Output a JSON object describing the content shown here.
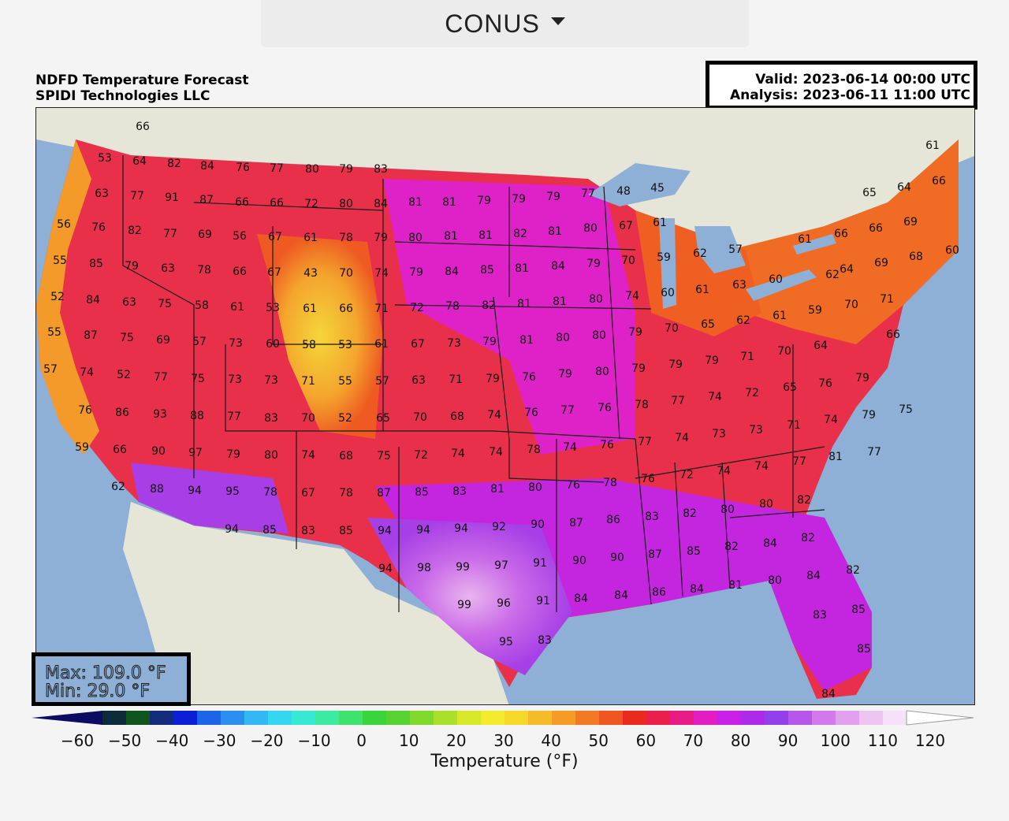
{
  "header": {
    "region_select": "CONUS"
  },
  "map": {
    "title": "NDFD Temperature Forecast",
    "provider": "SPIDI Technologies LLC",
    "valid": "Valid: 2023-06-14 00:00 UTC",
    "analysis": "Analysis: 2023-06-11 11:00 UTC",
    "max": "Max: 109.0 °F",
    "min": "Min: 29.0 °F"
  },
  "colorbar": {
    "label": "Temperature (°F)",
    "ticks": [
      "−60",
      "−50",
      "−40",
      "−30",
      "−20",
      "−10",
      "0",
      "10",
      "20",
      "30",
      "40",
      "50",
      "60",
      "70",
      "80",
      "90",
      "100",
      "110",
      "120"
    ],
    "colors": [
      "#0b0b63",
      "#0c2a3a",
      "#11551e",
      "#102c7a",
      "#0a1fd6",
      "#1e64e8",
      "#2c8ff0",
      "#33b8f3",
      "#35d7f0",
      "#37e8d2",
      "#3ceaa0",
      "#3fe26c",
      "#3ad53c",
      "#58d232",
      "#7fd92c",
      "#a9e02a",
      "#d7e82a",
      "#f2ec2c",
      "#f5d82a",
      "#f6bb28",
      "#f59c27",
      "#f27a24",
      "#ee5520",
      "#ea2a1e",
      "#ea1f4c",
      "#e81b84",
      "#e11dc3",
      "#c91fe6",
      "#ad2ae8",
      "#9240e9",
      "#b757ea",
      "#d27aec",
      "#e2a1ef",
      "#eec4f3",
      "#f6e2f8",
      "#ffffff"
    ]
  },
  "values": [
    [
      "66",
      180,
      159
    ],
    [
      "53",
      132,
      199
    ],
    [
      "64",
      176,
      203
    ],
    [
      "82",
      220,
      206
    ],
    [
      "84",
      262,
      209
    ],
    [
      "76",
      307,
      211
    ],
    [
      "77",
      350,
      212
    ],
    [
      "80",
      395,
      213
    ],
    [
      "79",
      438,
      213
    ],
    [
      "83",
      482,
      213
    ],
    [
      "63",
      128,
      244
    ],
    [
      "77",
      173,
      247
    ],
    [
      "91",
      217,
      249
    ],
    [
      "87",
      261,
      252
    ],
    [
      "66",
      306,
      255
    ],
    [
      "66",
      350,
      256
    ],
    [
      "72",
      394,
      257
    ],
    [
      "80",
      438,
      257
    ],
    [
      "84",
      482,
      257
    ],
    [
      "81",
      526,
      255
    ],
    [
      "81",
      569,
      255
    ],
    [
      "79",
      613,
      253
    ],
    [
      "79",
      657,
      251
    ],
    [
      "79",
      701,
      248
    ],
    [
      "77",
      745,
      244
    ],
    [
      "48",
      790,
      241
    ],
    [
      "45",
      833,
      237
    ],
    [
      "65",
      1102,
      243
    ],
    [
      "64",
      1146,
      236
    ],
    [
      "66",
      1190,
      228
    ],
    [
      "61",
      1182,
      183
    ],
    [
      "56",
      80,
      283
    ],
    [
      "76",
      124,
      287
    ],
    [
      "82",
      170,
      291
    ],
    [
      "77",
      215,
      295
    ],
    [
      "69",
      259,
      296
    ],
    [
      "56",
      303,
      298
    ],
    [
      "67",
      348,
      299
    ],
    [
      "61",
      393,
      300
    ],
    [
      "78",
      438,
      300
    ],
    [
      "79",
      482,
      300
    ],
    [
      "80",
      526,
      300
    ],
    [
      "81",
      571,
      298
    ],
    [
      "81",
      615,
      297
    ],
    [
      "82",
      659,
      295
    ],
    [
      "81",
      703,
      292
    ],
    [
      "80",
      748,
      288
    ],
    [
      "67",
      793,
      285
    ],
    [
      "61",
      836,
      281
    ],
    [
      "66",
      1066,
      295
    ],
    [
      "66",
      1110,
      288
    ],
    [
      "69",
      1154,
      280
    ],
    [
      "55",
      75,
      329
    ],
    [
      "85",
      121,
      333
    ],
    [
      "79",
      166,
      336
    ],
    [
      "63",
      212,
      339
    ],
    [
      "78",
      258,
      341
    ],
    [
      "66",
      303,
      343
    ],
    [
      "67",
      347,
      344
    ],
    [
      "43",
      393,
      345
    ],
    [
      "70",
      438,
      345
    ],
    [
      "74",
      483,
      345
    ],
    [
      "79",
      527,
      344
    ],
    [
      "84",
      572,
      343
    ],
    [
      "85",
      617,
      341
    ],
    [
      "81",
      661,
      339
    ],
    [
      "84",
      707,
      336
    ],
    [
      "79",
      752,
      333
    ],
    [
      "70",
      796,
      329
    ],
    [
      "59",
      841,
      325
    ],
    [
      "62",
      887,
      320
    ],
    [
      "57",
      932,
      315
    ],
    [
      "61",
      1020,
      302
    ],
    [
      "62",
      1055,
      347
    ],
    [
      "64",
      1073,
      340
    ],
    [
      "69",
      1117,
      332
    ],
    [
      "68",
      1161,
      324
    ],
    [
      "60",
      1207,
      316
    ],
    [
      "52",
      72,
      375
    ],
    [
      "84",
      117,
      379
    ],
    [
      "63",
      163,
      382
    ],
    [
      "75",
      208,
      384
    ],
    [
      "58",
      255,
      386
    ],
    [
      "61",
      300,
      388
    ],
    [
      "53",
      345,
      389
    ],
    [
      "61",
      392,
      390
    ],
    [
      "66",
      438,
      390
    ],
    [
      "71",
      483,
      390
    ],
    [
      "72",
      528,
      389
    ],
    [
      "78",
      573,
      387
    ],
    [
      "82",
      619,
      386
    ],
    [
      "81",
      664,
      384
    ],
    [
      "81",
      709,
      381
    ],
    [
      "80",
      755,
      378
    ],
    [
      "74",
      801,
      374
    ],
    [
      "60",
      846,
      370
    ],
    [
      "61",
      890,
      366
    ],
    [
      "63",
      937,
      360
    ],
    [
      "60",
      983,
      353
    ],
    [
      "59",
      1033,
      392
    ],
    [
      "70",
      1079,
      385
    ],
    [
      "71",
      1124,
      378
    ],
    [
      "61",
      988,
      399
    ],
    [
      "55",
      68,
      420
    ],
    [
      "87",
      114,
      424
    ],
    [
      "75",
      160,
      427
    ],
    [
      "69",
      206,
      430
    ],
    [
      "57",
      252,
      432
    ],
    [
      "73",
      298,
      434
    ],
    [
      "60",
      345,
      435
    ],
    [
      "58",
      391,
      436
    ],
    [
      "53",
      437,
      436
    ],
    [
      "61",
      483,
      435
    ],
    [
      "67",
      529,
      435
    ],
    [
      "73",
      575,
      434
    ],
    [
      "79",
      620,
      432
    ],
    [
      "81",
      667,
      430
    ],
    [
      "80",
      713,
      427
    ],
    [
      "80",
      759,
      424
    ],
    [
      "79",
      805,
      420
    ],
    [
      "70",
      851,
      415
    ],
    [
      "65",
      897,
      410
    ],
    [
      "62",
      942,
      405
    ],
    [
      "64",
      1040,
      437
    ],
    [
      "66",
      1132,
      423
    ],
    [
      "57",
      63,
      467
    ],
    [
      "74",
      109,
      471
    ],
    [
      "52",
      156,
      474
    ],
    [
      "77",
      203,
      477
    ],
    [
      "75",
      250,
      479
    ],
    [
      "73",
      297,
      480
    ],
    [
      "73",
      343,
      481
    ],
    [
      "71",
      390,
      482
    ],
    [
      "55",
      437,
      482
    ],
    [
      "57",
      484,
      482
    ],
    [
      "63",
      530,
      481
    ],
    [
      "71",
      577,
      480
    ],
    [
      "79",
      624,
      479
    ],
    [
      "76",
      670,
      477
    ],
    [
      "79",
      716,
      473
    ],
    [
      "80",
      763,
      470
    ],
    [
      "79",
      809,
      466
    ],
    [
      "79",
      856,
      461
    ],
    [
      "79",
      902,
      456
    ],
    [
      "71",
      947,
      451
    ],
    [
      "70",
      994,
      444
    ],
    [
      "65",
      1001,
      490
    ],
    [
      "76",
      1046,
      485
    ],
    [
      "79",
      1093,
      478
    ],
    [
      "76",
      107,
      519
    ],
    [
      "86",
      154,
      522
    ],
    [
      "93",
      202,
      524
    ],
    [
      "88",
      249,
      526
    ],
    [
      "77",
      296,
      527
    ],
    [
      "83",
      343,
      529
    ],
    [
      "70",
      390,
      529
    ],
    [
      "52",
      437,
      529
    ],
    [
      "65",
      485,
      529
    ],
    [
      "70",
      532,
      528
    ],
    [
      "68",
      579,
      527
    ],
    [
      "74",
      626,
      525
    ],
    [
      "76",
      673,
      522
    ],
    [
      "77",
      719,
      519
    ],
    [
      "76",
      766,
      516
    ],
    [
      "78",
      813,
      512
    ],
    [
      "77",
      859,
      507
    ],
    [
      "74",
      906,
      502
    ],
    [
      "72",
      953,
      497
    ],
    [
      "71",
      1006,
      538
    ],
    [
      "74",
      1053,
      531
    ],
    [
      "79",
      1101,
      525
    ],
    [
      "75",
      1148,
      518
    ],
    [
      "59",
      103,
      566
    ],
    [
      "66",
      151,
      569
    ],
    [
      "90",
      200,
      571
    ],
    [
      "97",
      247,
      573
    ],
    [
      "79",
      295,
      575
    ],
    [
      "80",
      343,
      576
    ],
    [
      "74",
      390,
      576
    ],
    [
      "68",
      438,
      577
    ],
    [
      "75",
      486,
      577
    ],
    [
      "72",
      533,
      576
    ],
    [
      "74",
      580,
      574
    ],
    [
      "74",
      628,
      572
    ],
    [
      "78",
      676,
      569
    ],
    [
      "74",
      722,
      566
    ],
    [
      "76",
      769,
      563
    ],
    [
      "77",
      817,
      559
    ],
    [
      "74",
      864,
      554
    ],
    [
      "73",
      911,
      549
    ],
    [
      "73",
      958,
      544
    ],
    [
      "77",
      1013,
      584
    ],
    [
      "81",
      1059,
      578
    ],
    [
      "77",
      1108,
      572
    ],
    [
      "62",
      149,
      616
    ],
    [
      "88",
      198,
      619
    ],
    [
      "94",
      246,
      621
    ],
    [
      "95",
      294,
      622
    ],
    [
      "78",
      342,
      623
    ],
    [
      "67",
      390,
      624
    ],
    [
      "78",
      438,
      624
    ],
    [
      "87",
      486,
      624
    ],
    [
      "85",
      534,
      623
    ],
    [
      "83",
      582,
      622
    ],
    [
      "81",
      630,
      619
    ],
    [
      "80",
      678,
      617
    ],
    [
      "76",
      726,
      614
    ],
    [
      "78",
      773,
      611
    ],
    [
      "76",
      821,
      606
    ],
    [
      "72",
      870,
      601
    ],
    [
      "74",
      917,
      596
    ],
    [
      "74",
      965,
      590
    ],
    [
      "80",
      971,
      638
    ],
    [
      "82",
      1019,
      633
    ],
    [
      "94",
      293,
      670
    ],
    [
      "85",
      341,
      671
    ],
    [
      "83",
      390,
      672
    ],
    [
      "85",
      438,
      672
    ],
    [
      "94",
      487,
      672
    ],
    [
      "94",
      536,
      671
    ],
    [
      "94",
      584,
      669
    ],
    [
      "92",
      632,
      667
    ],
    [
      "90",
      681,
      664
    ],
    [
      "87",
      730,
      662
    ],
    [
      "86",
      777,
      658
    ],
    [
      "83",
      826,
      654
    ],
    [
      "82",
      874,
      650
    ],
    [
      "80",
      922,
      645
    ],
    [
      "84",
      976,
      688
    ],
    [
      "82",
      1024,
      681
    ],
    [
      "94",
      488,
      720
    ],
    [
      "98",
      537,
      719
    ],
    [
      "99",
      586,
      718
    ],
    [
      "97",
      635,
      716
    ],
    [
      "91",
      684,
      713
    ],
    [
      "90",
      734,
      710
    ],
    [
      "90",
      782,
      706
    ],
    [
      "87",
      830,
      702
    ],
    [
      "85",
      879,
      698
    ],
    [
      "82",
      927,
      692
    ],
    [
      "81",
      932,
      741
    ],
    [
      "80",
      982,
      735
    ],
    [
      "84",
      1031,
      729
    ],
    [
      "82",
      1081,
      722
    ],
    [
      "99",
      588,
      766
    ],
    [
      "96",
      638,
      764
    ],
    [
      "91",
      688,
      761
    ],
    [
      "84",
      736,
      758
    ],
    [
      "84",
      787,
      754
    ],
    [
      "86",
      835,
      750
    ],
    [
      "84",
      883,
      746
    ],
    [
      "83",
      1039,
      779
    ],
    [
      "85",
      1088,
      772
    ],
    [
      "95",
      641,
      813
    ],
    [
      "83",
      690,
      811
    ],
    [
      "85",
      1095,
      822
    ],
    [
      "84",
      1050,
      879
    ]
  ]
}
